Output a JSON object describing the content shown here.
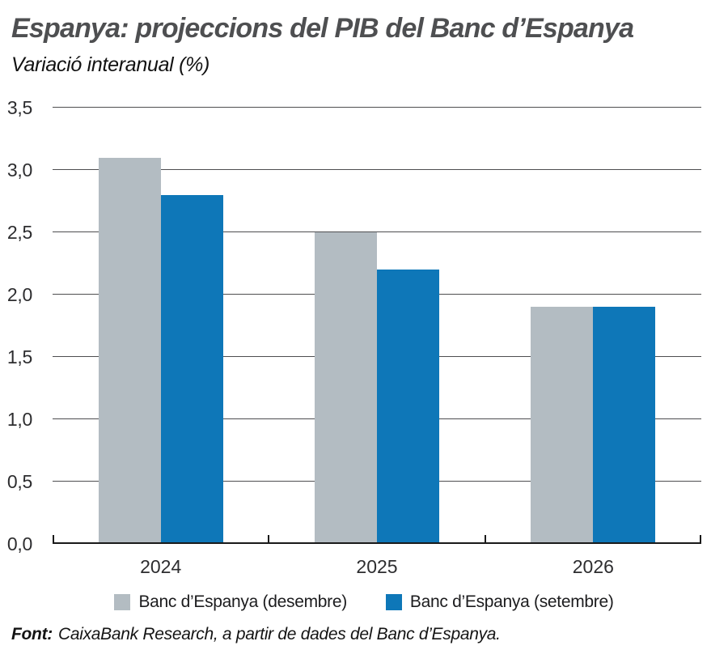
{
  "chart_data": {
    "type": "bar",
    "title": "Espanya: projeccions del PIB del Banc d’Espanya",
    "subtitle": "Variació interanual (%)",
    "categories": [
      "2024",
      "2025",
      "2026"
    ],
    "series": [
      {
        "name": "Banc d’Espanya (desembre)",
        "color": "#b3bcc2",
        "values": [
          3.1,
          2.5,
          1.9
        ]
      },
      {
        "name": "Banc d’Espanya (setembre)",
        "color": "#0e77b8",
        "values": [
          2.8,
          2.2,
          1.9
        ]
      }
    ],
    "ylim": [
      0,
      3.5
    ],
    "ytick_step": 0.5,
    "ytick_labels": [
      "0,0",
      "0,5",
      "1,0",
      "1,5",
      "2,0",
      "2,5",
      "3,0",
      "3,5"
    ],
    "grid": true,
    "legend_position": "bottom",
    "axis_color": "#1a1a1a",
    "gridline_color": "#4e4e50"
  },
  "footer": {
    "source_label": "Font:",
    "source_text": "CaixaBank Research, a partir de dades del Banc d’Espanya."
  }
}
